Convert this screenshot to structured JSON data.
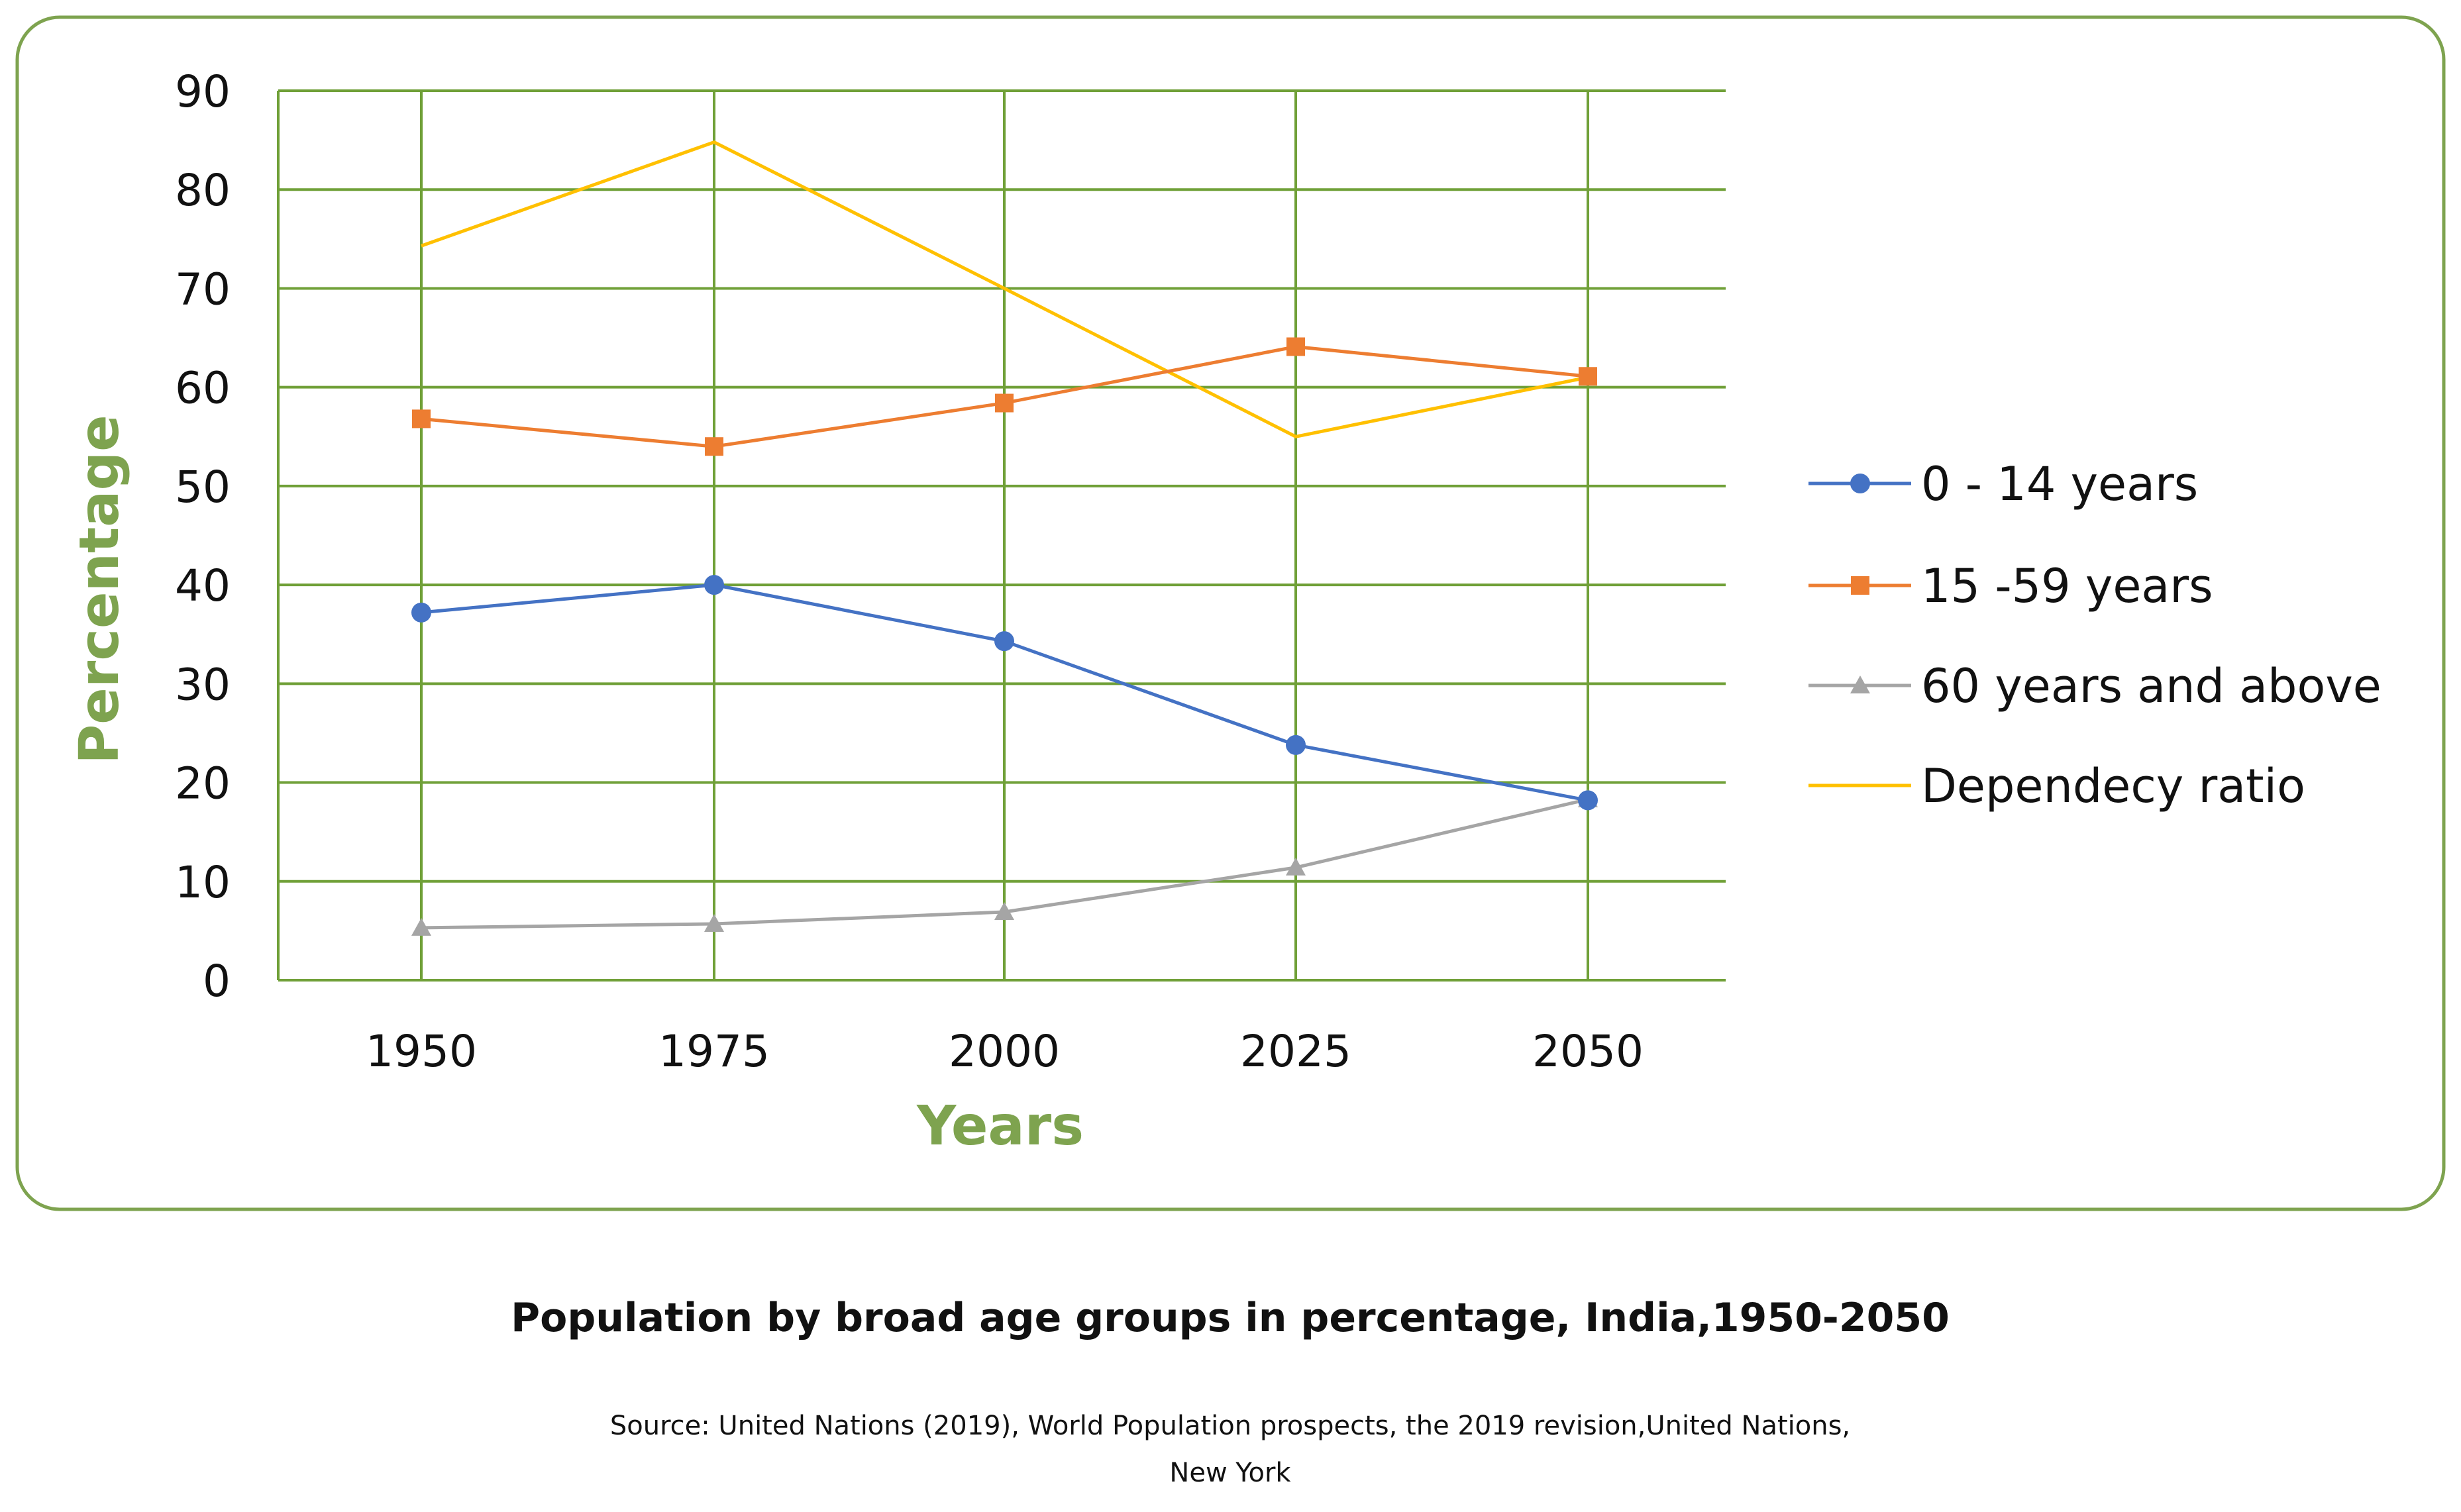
{
  "chart_data": {
    "type": "line",
    "categories": [
      "1950",
      "1975",
      "2000",
      "2025",
      "2050"
    ],
    "series": [
      {
        "name": "0 - 14 years",
        "values": [
          37.2,
          40.0,
          34.3,
          23.8,
          18.2
        ],
        "color": "#4472c4",
        "marker": "circle"
      },
      {
        "name": "15 -59 years",
        "values": [
          56.8,
          54.0,
          58.4,
          64.1,
          61.1
        ],
        "color": "#ed7d31",
        "marker": "square"
      },
      {
        "name": "60 years and above",
        "values": [
          5.3,
          5.7,
          6.9,
          11.4,
          18.3
        ],
        "color": "#a5a5a5",
        "marker": "triangle"
      },
      {
        "name": "Dependecy ratio",
        "values": [
          74.3,
          84.8,
          70.0,
          55.0,
          61.0
        ],
        "color": "#ffc000",
        "marker": "none"
      }
    ],
    "xlabel": "Years",
    "ylabel": "Percentage",
    "ylim": [
      0,
      90
    ],
    "yticks": [
      "0",
      "10",
      "20",
      "30",
      "40",
      "50",
      "60",
      "70",
      "80",
      "90"
    ],
    "grid": true,
    "legend_position": "right",
    "title": "Population by broad age groups in percentage, India,1950-2050",
    "source_line1": "Source: United Nations (2019), World Population prospects, the 2019 revision,United Nations,",
    "source_line2": "New York",
    "accent_color": "#7ea34f",
    "grid_color": "#70a038"
  }
}
